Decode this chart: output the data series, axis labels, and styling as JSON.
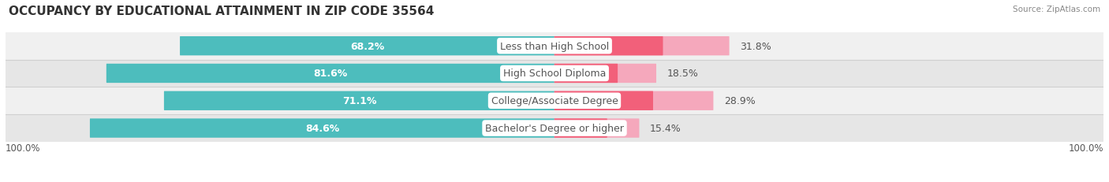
{
  "title": "OCCUPANCY BY EDUCATIONAL ATTAINMENT IN ZIP CODE 35564",
  "source": "Source: ZipAtlas.com",
  "categories": [
    "Less than High School",
    "High School Diploma",
    "College/Associate Degree",
    "Bachelor's Degree or higher"
  ],
  "owner_pct": [
    68.2,
    81.6,
    71.1,
    84.6
  ],
  "renter_pct": [
    31.8,
    18.5,
    28.9,
    15.4
  ],
  "owner_color": "#4DBDBD",
  "renter_color_1": "#F2607A",
  "renter_color_2": "#F5A8BC",
  "row_bg_colors": [
    "#F0F0F0",
    "#E6E6E6",
    "#F0F0F0",
    "#E6E6E6"
  ],
  "sep_color": "#D0D0D0",
  "label_color": "#FFFFFF",
  "cat_label_color": "#555555",
  "pct_label_color": "#555555",
  "label_fontsize": 9,
  "cat_label_fontsize": 9,
  "title_fontsize": 11,
  "bar_height": 0.62,
  "figsize": [
    14.06,
    2.32
  ],
  "dpi": 100,
  "axis_label_left": "100.0%",
  "axis_label_right": "100.0%"
}
